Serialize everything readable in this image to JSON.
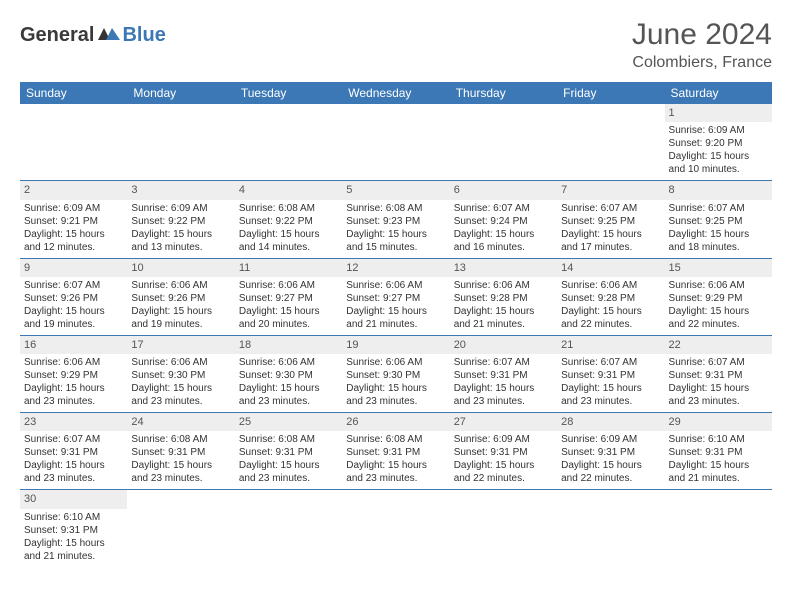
{
  "logo": {
    "text1": "General",
    "text2": "Blue"
  },
  "title": "June 2024",
  "location": "Colombiers, France",
  "colors": {
    "header_bg": "#3b78b5",
    "header_text": "#ffffff",
    "daynum_bg": "#eeeeee",
    "row_border": "#3b78b5",
    "text": "#333333",
    "logo_gray": "#3a3a3a",
    "logo_blue": "#3b78b5"
  },
  "weekdays": [
    "Sunday",
    "Monday",
    "Tuesday",
    "Wednesday",
    "Thursday",
    "Friday",
    "Saturday"
  ],
  "weeks": [
    [
      null,
      null,
      null,
      null,
      null,
      null,
      {
        "d": "1",
        "sr": "6:09 AM",
        "ss": "9:20 PM",
        "dl": "15 hours and 10 minutes."
      }
    ],
    [
      {
        "d": "2",
        "sr": "6:09 AM",
        "ss": "9:21 PM",
        "dl": "15 hours and 12 minutes."
      },
      {
        "d": "3",
        "sr": "6:09 AM",
        "ss": "9:22 PM",
        "dl": "15 hours and 13 minutes."
      },
      {
        "d": "4",
        "sr": "6:08 AM",
        "ss": "9:22 PM",
        "dl": "15 hours and 14 minutes."
      },
      {
        "d": "5",
        "sr": "6:08 AM",
        "ss": "9:23 PM",
        "dl": "15 hours and 15 minutes."
      },
      {
        "d": "6",
        "sr": "6:07 AM",
        "ss": "9:24 PM",
        "dl": "15 hours and 16 minutes."
      },
      {
        "d": "7",
        "sr": "6:07 AM",
        "ss": "9:25 PM",
        "dl": "15 hours and 17 minutes."
      },
      {
        "d": "8",
        "sr": "6:07 AM",
        "ss": "9:25 PM",
        "dl": "15 hours and 18 minutes."
      }
    ],
    [
      {
        "d": "9",
        "sr": "6:07 AM",
        "ss": "9:26 PM",
        "dl": "15 hours and 19 minutes."
      },
      {
        "d": "10",
        "sr": "6:06 AM",
        "ss": "9:26 PM",
        "dl": "15 hours and 19 minutes."
      },
      {
        "d": "11",
        "sr": "6:06 AM",
        "ss": "9:27 PM",
        "dl": "15 hours and 20 minutes."
      },
      {
        "d": "12",
        "sr": "6:06 AM",
        "ss": "9:27 PM",
        "dl": "15 hours and 21 minutes."
      },
      {
        "d": "13",
        "sr": "6:06 AM",
        "ss": "9:28 PM",
        "dl": "15 hours and 21 minutes."
      },
      {
        "d": "14",
        "sr": "6:06 AM",
        "ss": "9:28 PM",
        "dl": "15 hours and 22 minutes."
      },
      {
        "d": "15",
        "sr": "6:06 AM",
        "ss": "9:29 PM",
        "dl": "15 hours and 22 minutes."
      }
    ],
    [
      {
        "d": "16",
        "sr": "6:06 AM",
        "ss": "9:29 PM",
        "dl": "15 hours and 23 minutes."
      },
      {
        "d": "17",
        "sr": "6:06 AM",
        "ss": "9:30 PM",
        "dl": "15 hours and 23 minutes."
      },
      {
        "d": "18",
        "sr": "6:06 AM",
        "ss": "9:30 PM",
        "dl": "15 hours and 23 minutes."
      },
      {
        "d": "19",
        "sr": "6:06 AM",
        "ss": "9:30 PM",
        "dl": "15 hours and 23 minutes."
      },
      {
        "d": "20",
        "sr": "6:07 AM",
        "ss": "9:31 PM",
        "dl": "15 hours and 23 minutes."
      },
      {
        "d": "21",
        "sr": "6:07 AM",
        "ss": "9:31 PM",
        "dl": "15 hours and 23 minutes."
      },
      {
        "d": "22",
        "sr": "6:07 AM",
        "ss": "9:31 PM",
        "dl": "15 hours and 23 minutes."
      }
    ],
    [
      {
        "d": "23",
        "sr": "6:07 AM",
        "ss": "9:31 PM",
        "dl": "15 hours and 23 minutes."
      },
      {
        "d": "24",
        "sr": "6:08 AM",
        "ss": "9:31 PM",
        "dl": "15 hours and 23 minutes."
      },
      {
        "d": "25",
        "sr": "6:08 AM",
        "ss": "9:31 PM",
        "dl": "15 hours and 23 minutes."
      },
      {
        "d": "26",
        "sr": "6:08 AM",
        "ss": "9:31 PM",
        "dl": "15 hours and 23 minutes."
      },
      {
        "d": "27",
        "sr": "6:09 AM",
        "ss": "9:31 PM",
        "dl": "15 hours and 22 minutes."
      },
      {
        "d": "28",
        "sr": "6:09 AM",
        "ss": "9:31 PM",
        "dl": "15 hours and 22 minutes."
      },
      {
        "d": "29",
        "sr": "6:10 AM",
        "ss": "9:31 PM",
        "dl": "15 hours and 21 minutes."
      }
    ],
    [
      {
        "d": "30",
        "sr": "6:10 AM",
        "ss": "9:31 PM",
        "dl": "15 hours and 21 minutes."
      },
      null,
      null,
      null,
      null,
      null,
      null
    ]
  ],
  "labels": {
    "sunrise": "Sunrise:",
    "sunset": "Sunset:",
    "daylight": "Daylight:"
  }
}
